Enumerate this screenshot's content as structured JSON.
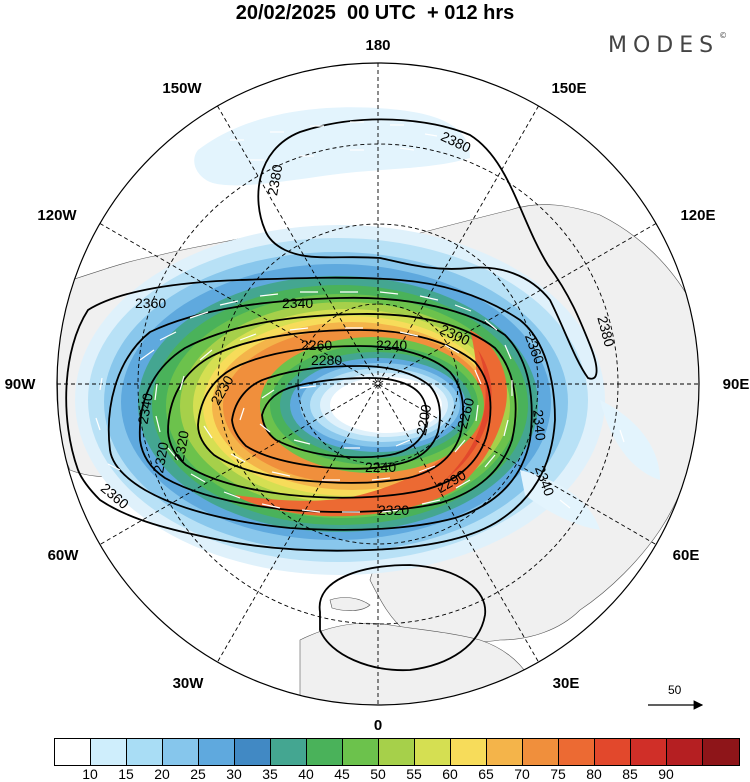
{
  "header": {
    "title": "20/02/2025  00 UTC  + 012 hrs",
    "brand": "MODES",
    "brand_mark": "©"
  },
  "map": {
    "projection": "north polar stereographic",
    "longitude_labels": [
      "180",
      "150E",
      "120E",
      "90E",
      "60E",
      "30E",
      "0",
      "30W",
      "60W",
      "90W",
      "120W",
      "150W"
    ],
    "contour_labels": [
      "2380",
      "2380",
      "2380",
      "2360",
      "2360",
      "2360",
      "2340",
      "2340",
      "2340",
      "2340",
      "2320",
      "2320",
      "2300",
      "2290",
      "2280",
      "2260",
      "2240",
      "2240",
      "2230",
      "2200",
      "2260",
      "2320"
    ],
    "wind_vector_reference": "50"
  },
  "colorbar": {
    "colors": [
      "#ffffff",
      "#cfeefc",
      "#a9ddf5",
      "#86c6ec",
      "#5fa9de",
      "#4189c4",
      "#44a691",
      "#4ab25a",
      "#6cc24c",
      "#a6d04a",
      "#d5df52",
      "#f7dc5a",
      "#f4b44a",
      "#f08f3c",
      "#ec6a33",
      "#e2482c",
      "#d02f28",
      "#b51f22",
      "#8e1519"
    ],
    "tick_labels": [
      "10",
      "15",
      "20",
      "25",
      "30",
      "35",
      "40",
      "45",
      "50",
      "55",
      "60",
      "65",
      "70",
      "75",
      "80",
      "85",
      "90"
    ]
  }
}
